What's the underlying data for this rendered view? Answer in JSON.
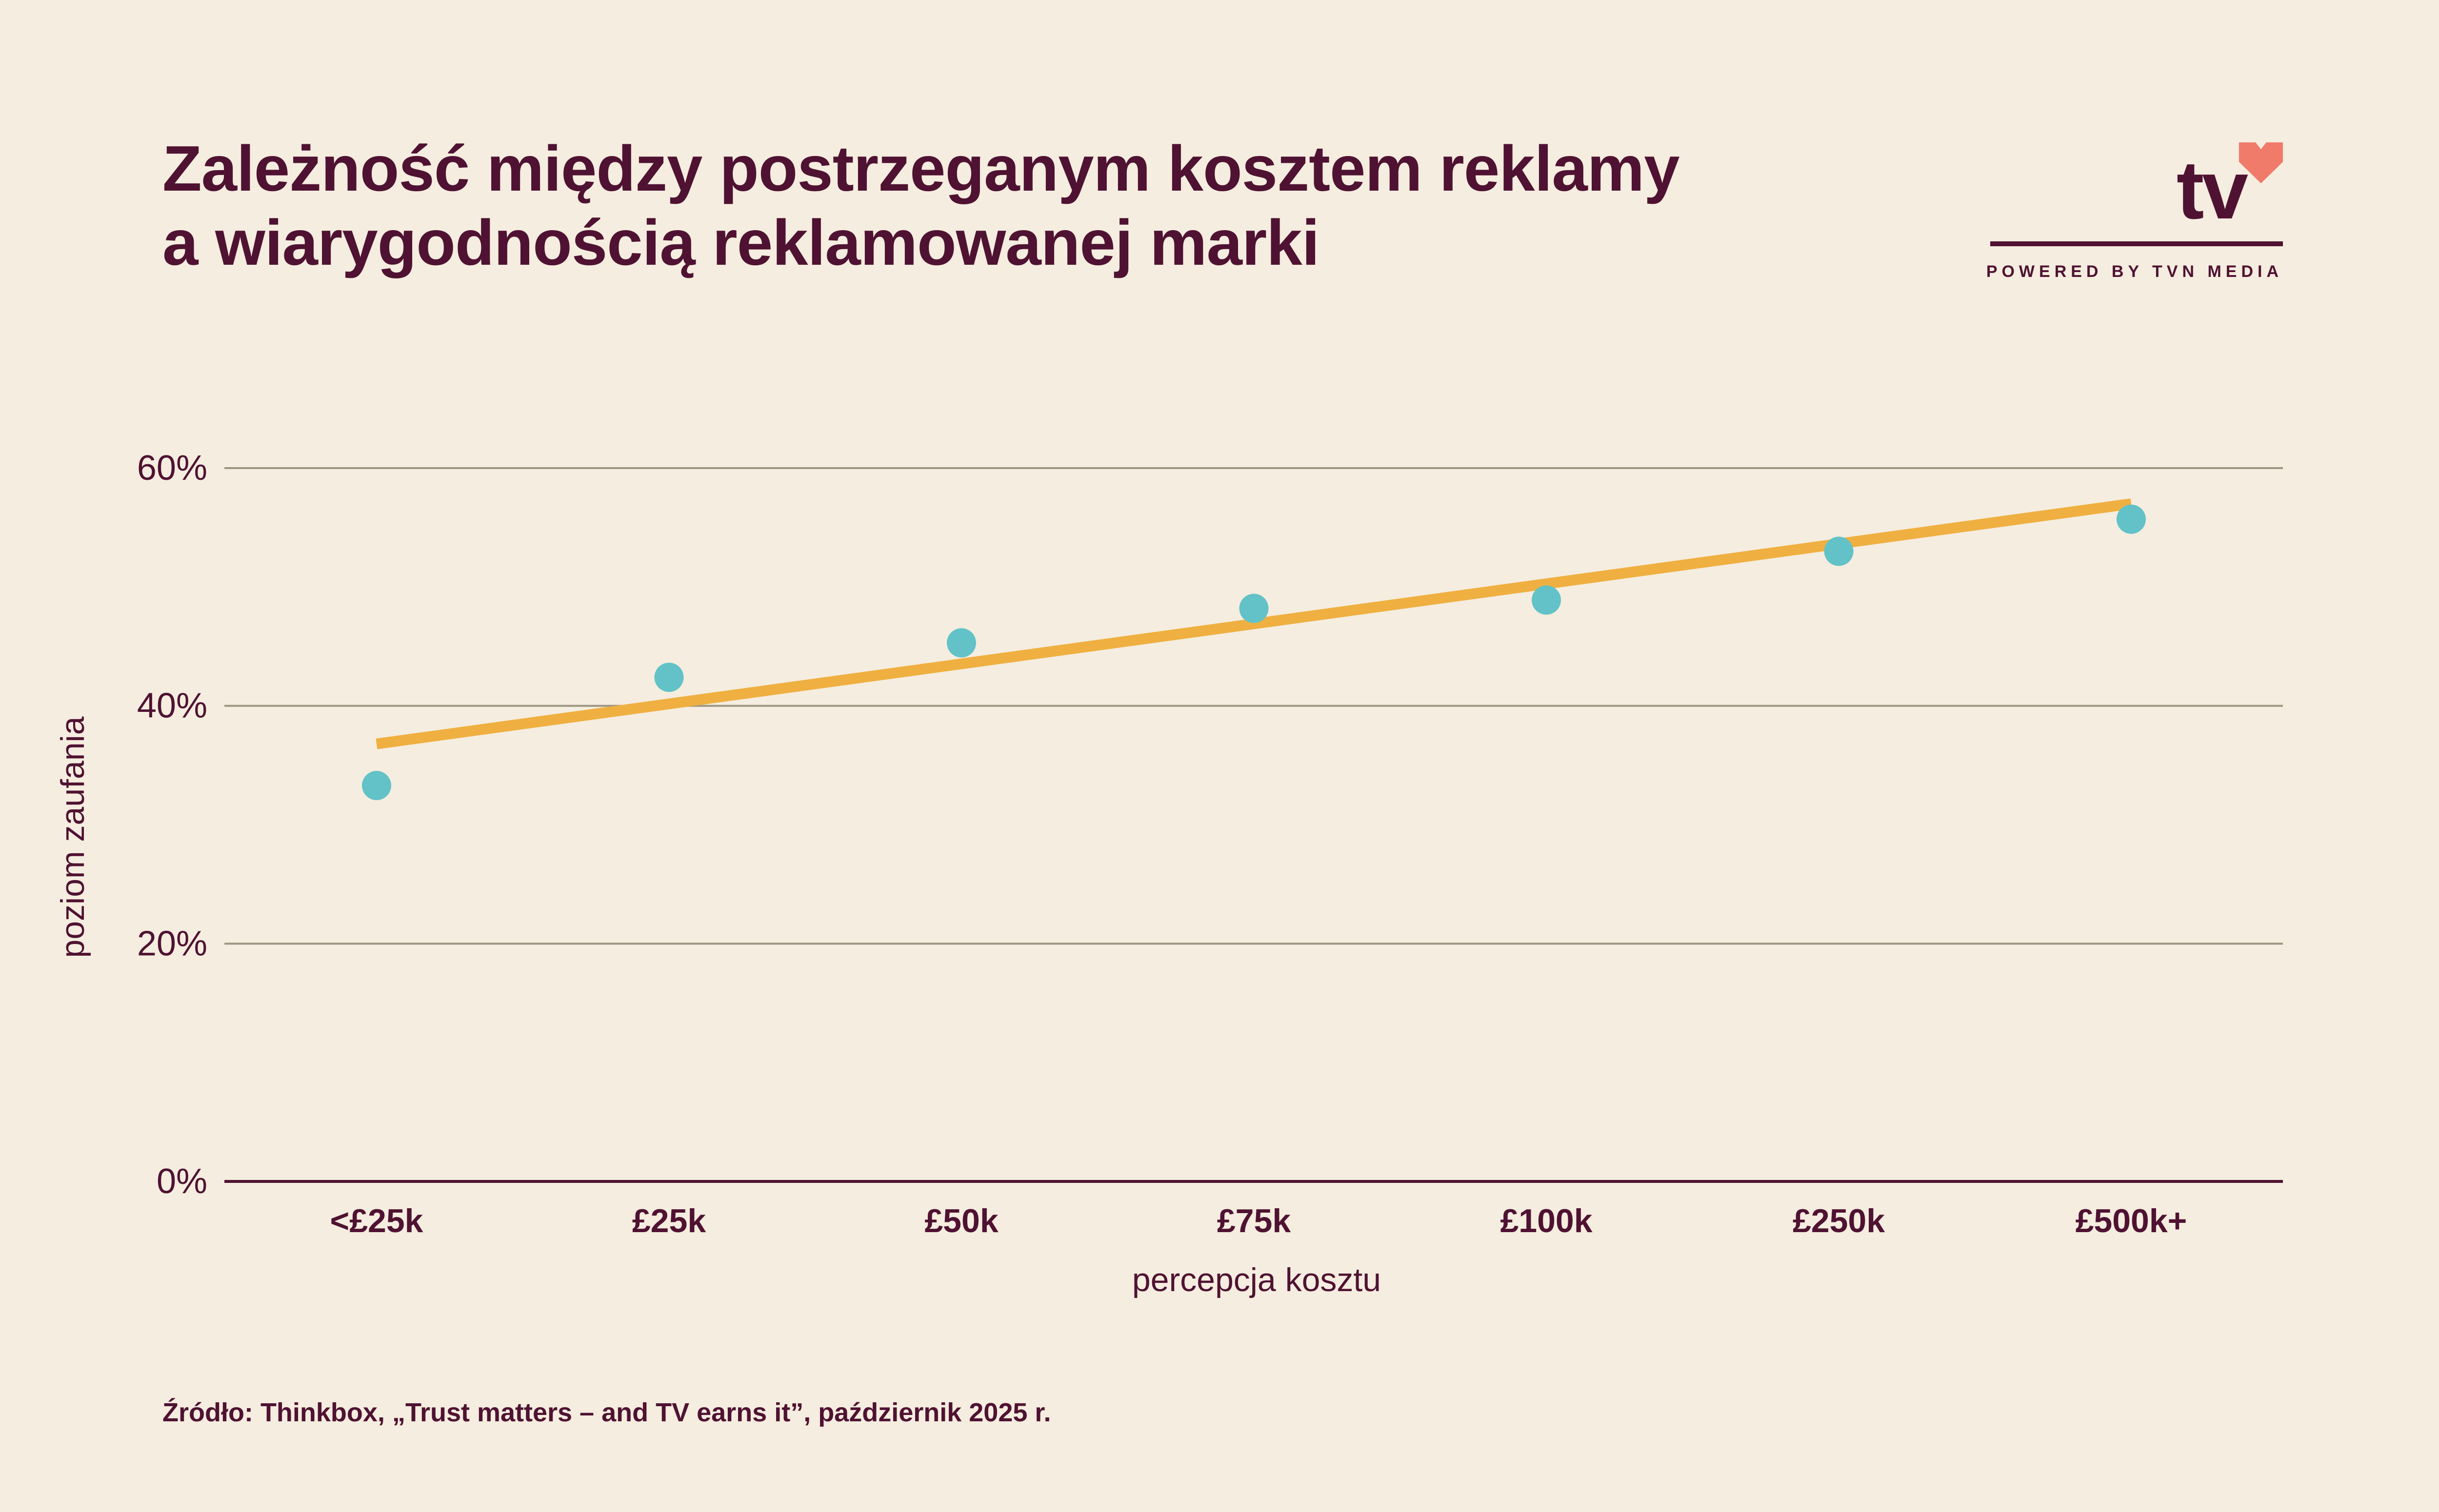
{
  "title": {
    "line1": "Zależność między postrzeganym kosztem reklamy",
    "line2": "a wiarygodnością reklamowanej marki"
  },
  "logo": {
    "text": "tv",
    "tagline": "POWERED BY TVN MEDIA",
    "heart_color": "#F07B6B"
  },
  "colors": {
    "background": "#F5EDDF",
    "text": "#4F1232",
    "points": "#62C2C8",
    "trend": "#EFB041",
    "grid": "#9C9582"
  },
  "chart_data": {
    "type": "scatter",
    "categories": [
      "<£25k",
      "£25k",
      "£50k",
      "£75k",
      "£100k",
      "£250k",
      "£500k+"
    ],
    "series": [
      {
        "values": [
          33.3,
          42.4,
          45.3,
          48.2,
          48.9,
          53.0,
          55.7
        ]
      }
    ],
    "trendline": {
      "start": 36.8,
      "end": 57.0
    },
    "xlabel": "percepcja kosztu",
    "ylabel": "poziom zaufania",
    "ylim": [
      0,
      60
    ],
    "yticks": [
      0,
      20,
      40,
      60
    ],
    "ytick_labels": [
      "0%",
      "20%",
      "40%",
      "60%"
    ],
    "grid": true,
    "legend": "none"
  },
  "source": "Źródło: Thinkbox, „Trust matters – and TV earns it”, październik 2025 r."
}
